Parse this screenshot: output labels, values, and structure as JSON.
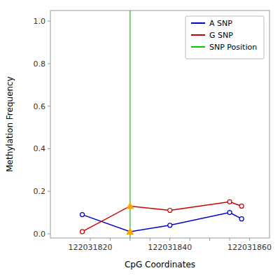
{
  "chart_data": {
    "type": "line",
    "xlabel": "CpG Coordinates",
    "ylabel": "Methylation Frequency",
    "x": [
      122031818,
      122031830,
      122031840,
      122031855,
      122031858
    ],
    "series": [
      {
        "name": "A SNP",
        "color": "#0000CC",
        "marker": "circle",
        "values": [
          0.09,
          0.01,
          0.04,
          0.1,
          0.07
        ]
      },
      {
        "name": "G SNP",
        "color": "#CC0000",
        "marker": "circle",
        "values": [
          0.01,
          0.13,
          0.11,
          0.15,
          0.13
        ]
      }
    ],
    "snp_line": {
      "name": "SNP Position",
      "x": 122031830,
      "color": "#00CC00",
      "marker": "triangle",
      "marker_color": "#FFA500"
    },
    "xlim": [
      122031810,
      122031865
    ],
    "ylim": [
      -0.02,
      1.05
    ],
    "xticks": [
      122031820,
      {
        "value": 122031825,
        "label": null
      },
      {
        "value": 122031830,
        "label": null
      },
      {
        "value": 122031835,
        "label": null
      },
      122031840,
      {
        "value": 122031845,
        "label": null
      },
      {
        "value": 122031850,
        "label": null
      },
      {
        "value": 122031855,
        "label": null
      },
      122031860
    ],
    "yticks": [
      {
        "value": 0.0,
        "label": "0.0"
      },
      0.2,
      0.4,
      0.6,
      0.8,
      {
        "value": 1.0,
        "label": "1.0"
      }
    ],
    "grid": false,
    "legend": "upper right"
  }
}
